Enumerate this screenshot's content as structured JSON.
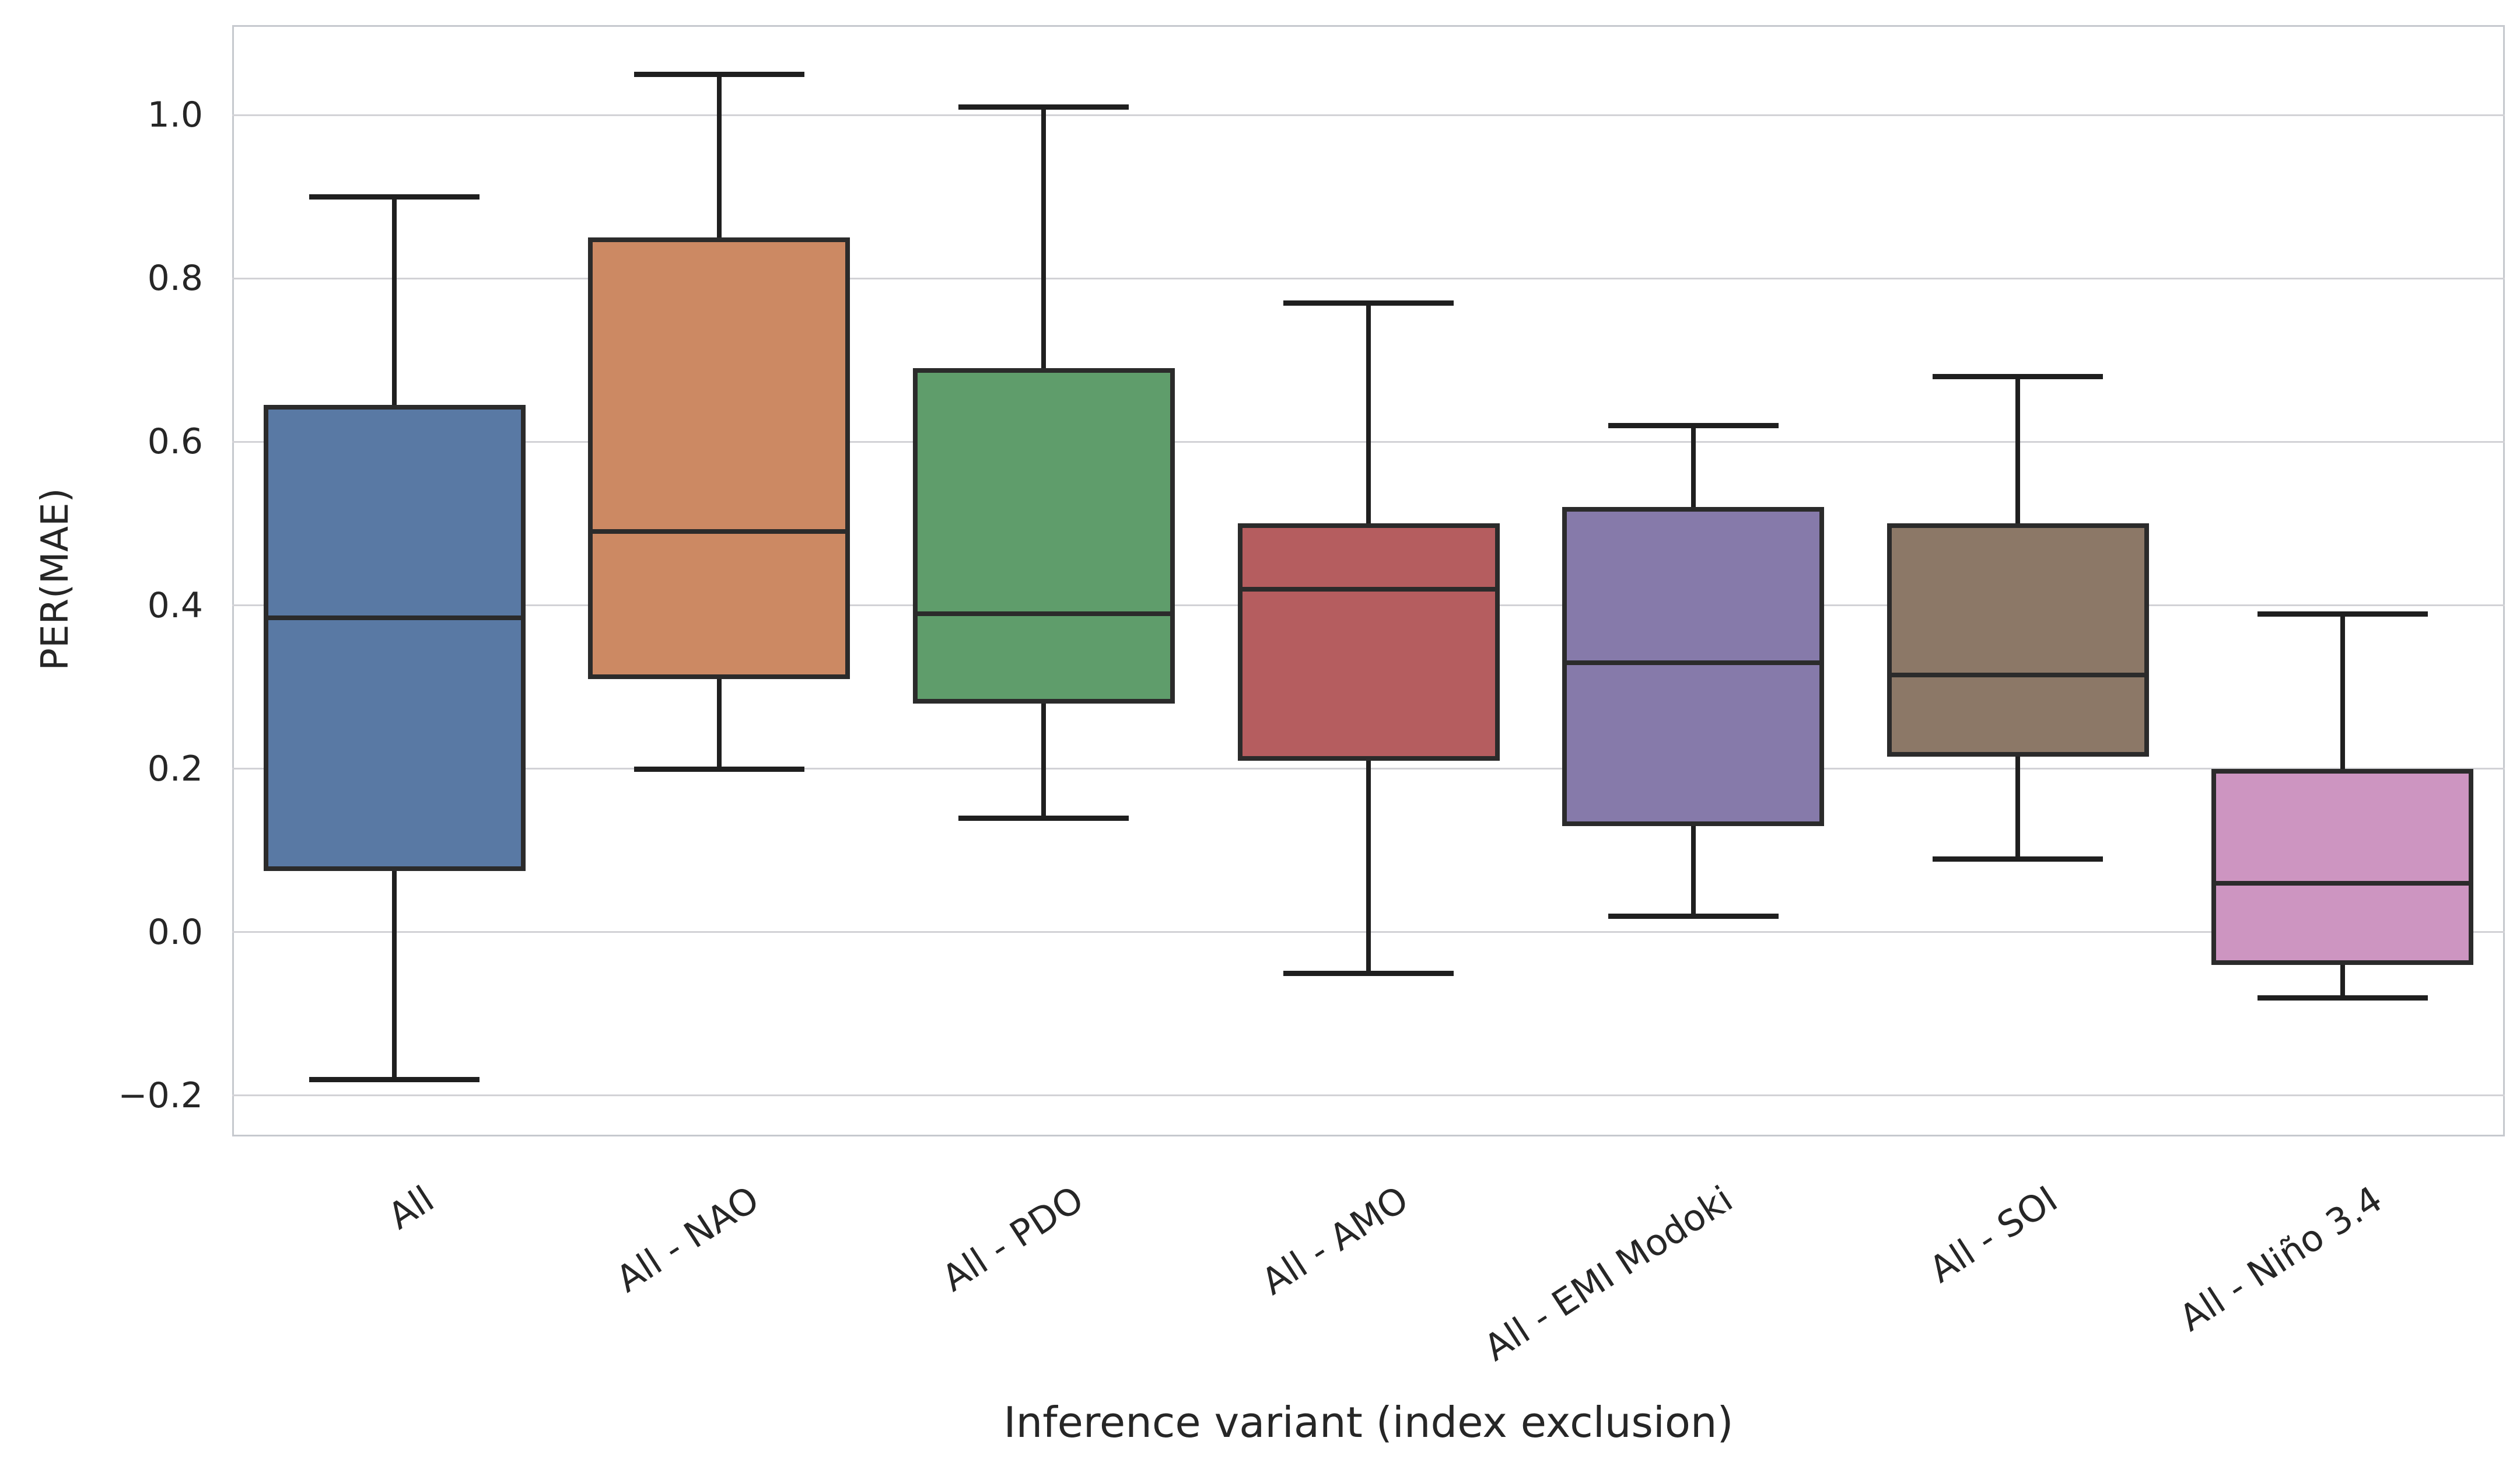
{
  "chart_data": {
    "type": "box",
    "title": "",
    "xlabel": "Inference variant (index exclusion)",
    "ylabel": "PER(MAE)",
    "categories": [
      "All",
      "All - NAO",
      "All - PDO",
      "All - AMO",
      "All - EMI Modoki",
      "All - SOI",
      "All - Niño 3.4"
    ],
    "series": [
      {
        "name": "All",
        "whisker_low": -0.18,
        "q1": 0.075,
        "median": 0.385,
        "q3": 0.645,
        "whisker_high": 0.9,
        "color": "#5979A4"
      },
      {
        "name": "All - NAO",
        "whisker_low": 0.2,
        "q1": 0.31,
        "median": 0.49,
        "q3": 0.85,
        "whisker_high": 1.05,
        "color": "#CC8963"
      },
      {
        "name": "All - PDO",
        "whisker_low": 0.14,
        "q1": 0.28,
        "median": 0.39,
        "q3": 0.69,
        "whisker_high": 1.01,
        "color": "#5F9D6B"
      },
      {
        "name": "All - AMO",
        "whisker_low": -0.05,
        "q1": 0.21,
        "median": 0.42,
        "q3": 0.5,
        "whisker_high": 0.77,
        "color": "#B55D5F"
      },
      {
        "name": "All - EMI Modoki",
        "whisker_low": 0.02,
        "q1": 0.13,
        "median": 0.33,
        "q3": 0.52,
        "whisker_high": 0.62,
        "color": "#867AAA"
      },
      {
        "name": "All - SOI",
        "whisker_low": 0.09,
        "q1": 0.215,
        "median": 0.315,
        "q3": 0.5,
        "whisker_high": 0.68,
        "color": "#8C7867"
      },
      {
        "name": "All - Niño 3.4",
        "whisker_low": -0.08,
        "q1": -0.04,
        "median": 0.06,
        "q3": 0.2,
        "whisker_high": 0.39,
        "color": "#CD95C1"
      }
    ],
    "ylim": [
      -0.25,
      1.11
    ],
    "yticks": [
      {
        "value": 1.0,
        "label": "1.0"
      },
      {
        "value": 0.8,
        "label": "0.8"
      },
      {
        "value": 0.6,
        "label": "0.6"
      },
      {
        "value": 0.4,
        "label": "0.4"
      },
      {
        "value": 0.2,
        "label": "0.2"
      },
      {
        "value": 0.0,
        "label": "0.0"
      },
      {
        "value": -0.2,
        "label": "−0.2"
      }
    ],
    "grid": "horizontal",
    "legend": "none",
    "colors": {
      "box_edge": "#2b2b2b",
      "whisker": "#1f1f1f",
      "grid": "#d2d2d6",
      "spine": "#c6c9ce",
      "text": "#262626",
      "background": "#ffffff"
    }
  }
}
